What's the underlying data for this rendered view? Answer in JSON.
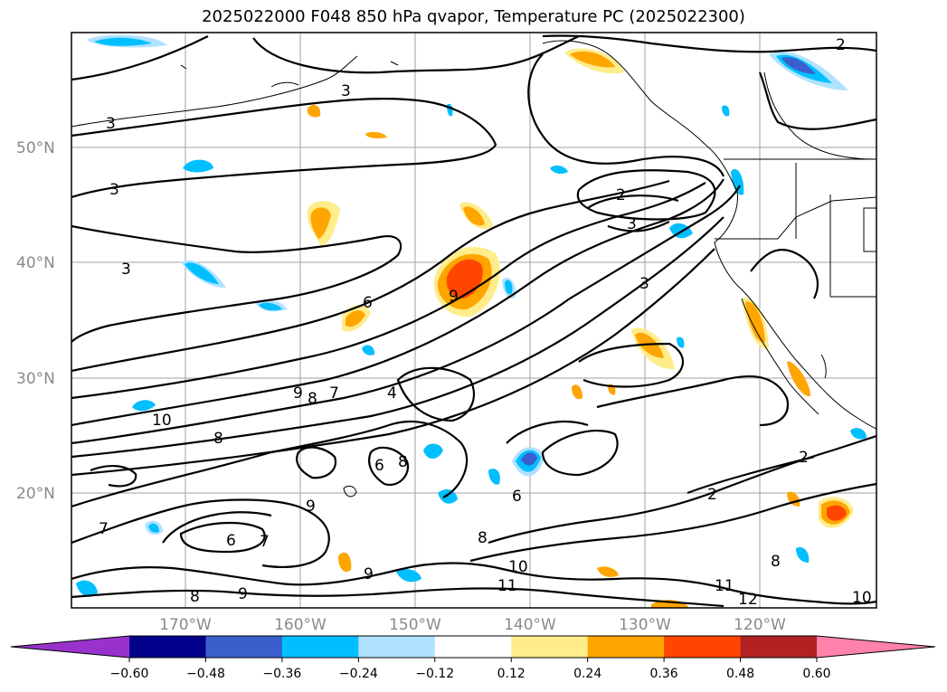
{
  "title": "2025022000 F048 850 hPa qvapor, Temperature PC (2025022300)",
  "lat_labels": [
    "50°N",
    "40°N",
    "30°N",
    "20°N"
  ],
  "lon_labels": [
    "170°W",
    "160°W",
    "150°W",
    "140°W",
    "130°W",
    "120°W"
  ],
  "colorbar": {
    "colors": [
      "#9932cc",
      "#00008b",
      "#3a5fcd",
      "#00bfff",
      "#b0e2ff",
      "#ffffff",
      "#ffec8b",
      "#ffa500",
      "#ff4500",
      "#b22222",
      "#ff82ab"
    ],
    "ticks": [
      "−0.60",
      "−0.48",
      "−0.36",
      "−0.24",
      "−0.12",
      "0.12",
      "0.24",
      "0.36",
      "0.48",
      "0.60"
    ]
  },
  "contour_labels": [
    "2",
    "3",
    "3",
    "3",
    "3",
    "2",
    "3",
    "3",
    "6",
    "9",
    "9",
    "8",
    "7",
    "4",
    "10",
    "8",
    "8",
    "6",
    "9",
    "6",
    "7",
    "9",
    "8",
    "6",
    "10",
    "11",
    "12",
    "11",
    "10",
    "2",
    "2",
    "7",
    "8",
    "9",
    "8"
  ]
}
